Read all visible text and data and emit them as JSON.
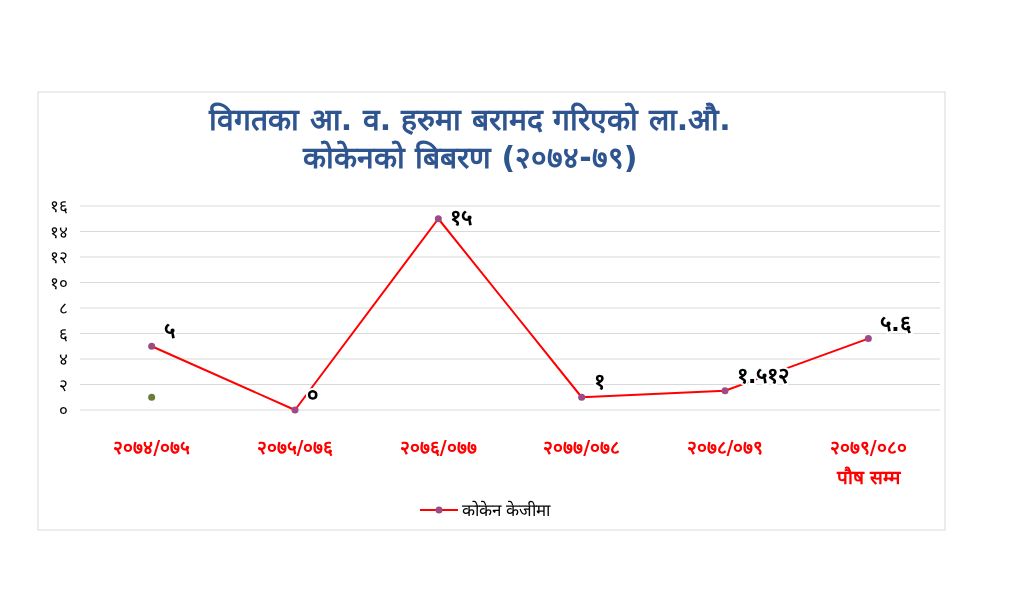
{
  "chart_data": {
    "type": "line",
    "title": "विगतका आ. व. हरुमा बरामद गरिएको ला.औ. कोकेनको बिबरण (२०७४-७९)",
    "categories": [
      "२०७४/०७५",
      "२०७५/०७६",
      "२०७६/०७७",
      "२०७७/०७८",
      "२०७८/०७९",
      "२०७९/०८० पौष सम्म"
    ],
    "ylim": [
      0,
      16
    ],
    "yticks": [
      {
        "value": 0,
        "label": "०"
      },
      {
        "value": 2,
        "label": "२"
      },
      {
        "value": 4,
        "label": "४"
      },
      {
        "value": 6,
        "label": "६"
      },
      {
        "value": 8,
        "label": "८"
      },
      {
        "value": 10,
        "label": "१०"
      },
      {
        "value": 12,
        "label": "१२"
      },
      {
        "value": 14,
        "label": "१४"
      },
      {
        "value": 16,
        "label": "१६"
      }
    ],
    "grid": "y",
    "legend": "bottom",
    "marker": "circle",
    "series": [
      {
        "name": "कोकेन केजीमा",
        "color": "#ff0000",
        "values": [
          5,
          0,
          15,
          1,
          1.512,
          5.6
        ],
        "value_labels": [
          "५",
          "०",
          "१५",
          "१",
          "१.५१२",
          "५.६"
        ]
      },
      {
        "type": "scatter",
        "color": "#6b7b3a",
        "values": [
          1,
          null,
          null,
          null,
          null,
          null
        ]
      }
    ]
  }
}
